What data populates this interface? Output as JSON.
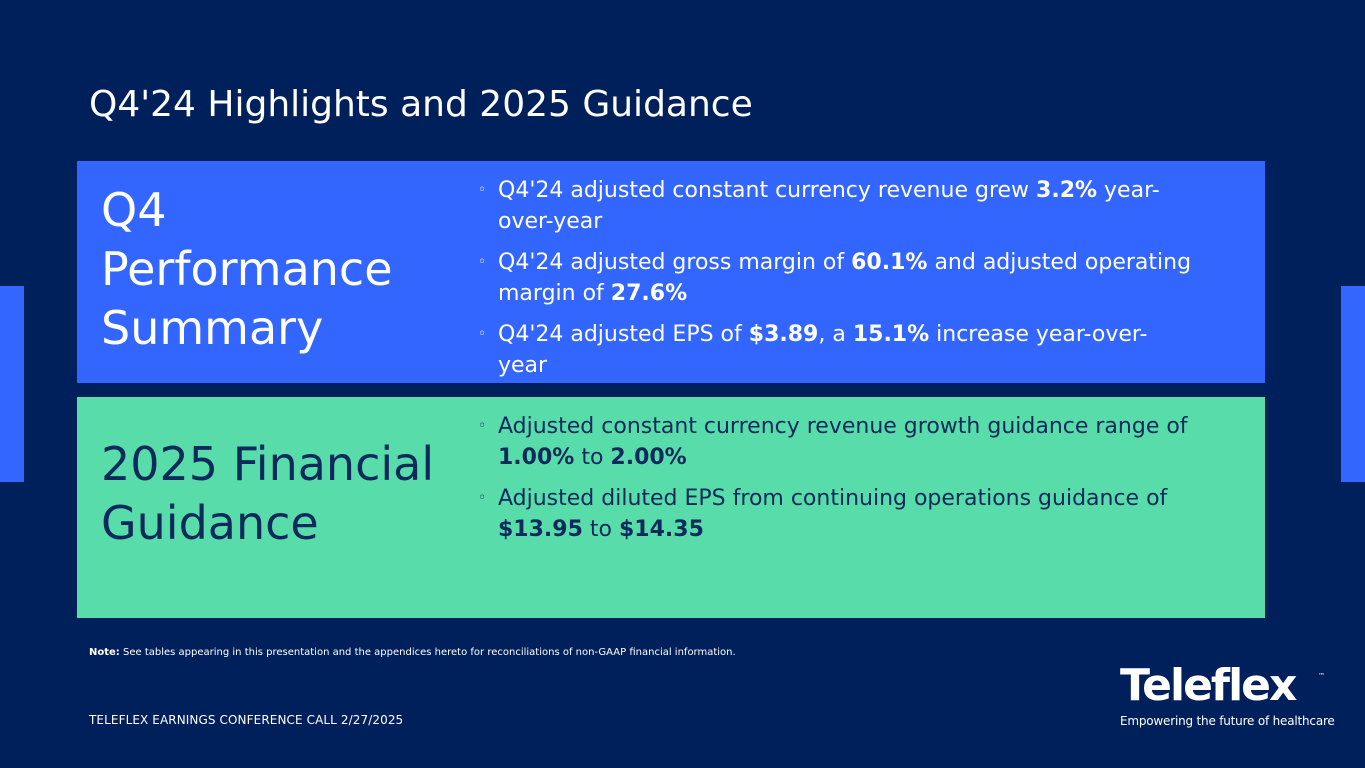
{
  "slide": {
    "title": "Q4'24 Highlights and 2025 Guidance"
  },
  "performance": {
    "heading": [
      "Q4",
      "Performance",
      "Summary"
    ],
    "bullets": [
      {
        "lines": [
          [
            {
              "t": "Q4'24 adjusted constant currency revenue grew "
            },
            {
              "t": "3.2%",
              "b": true
            },
            {
              "t": "  year-"
            }
          ],
          [
            {
              "t": "over-year"
            }
          ]
        ]
      },
      {
        "lines": [
          [
            {
              "t": "Q4'24 adjusted gross margin of "
            },
            {
              "t": "60.1%",
              "b": true
            },
            {
              "t": "  and adjusted operating"
            }
          ],
          [
            {
              "t": "margin of "
            },
            {
              "t": "27.6%",
              "b": true
            }
          ]
        ]
      },
      {
        "lines": [
          [
            {
              "t": "Q4'24 adjusted EPS of "
            },
            {
              "t": "$3.89",
              "b": true
            },
            {
              "t": ", a "
            },
            {
              "t": "15.1%",
              "b": true
            },
            {
              "t": "  increase year-over-"
            }
          ],
          [
            {
              "t": "year"
            }
          ]
        ]
      }
    ]
  },
  "guidance": {
    "heading": [
      "2025 Financial",
      "Guidance"
    ],
    "bullets": [
      {
        "lines": [
          [
            {
              "t": "Adjusted constant currency revenue growth guidance range of"
            }
          ],
          [
            {
              "t": "1.00%",
              "b": true
            },
            {
              "t": "  to "
            },
            {
              "t": "2.00%",
              "b": true
            }
          ]
        ]
      },
      {
        "lines": [
          [
            {
              "t": "Adjusted diluted EPS from continuing operations guidance of"
            }
          ],
          [
            {
              "t": "$13.95",
              "b": true
            },
            {
              "t": " to "
            },
            {
              "t": "$14.35",
              "b": true
            }
          ]
        ]
      }
    ]
  },
  "bullet_symbol": "◦",
  "note": {
    "label": "Note:",
    "text": " See tables appearing in this presentation and the appendices hereto for reconciliations of non-GAAP financial information."
  },
  "footer": "TELEFLEX EARNINGS CONFERENCE CALL 2/27/2025",
  "logo": {
    "word": "Teleflex",
    "tm": "™",
    "tagline": "Empowering the future of healthcare"
  },
  "colors": {
    "background": "#00205b",
    "performance_panel": "#3366ff",
    "guidance_panel": "#58ddaa",
    "dark_text": "#0e2a5c"
  }
}
